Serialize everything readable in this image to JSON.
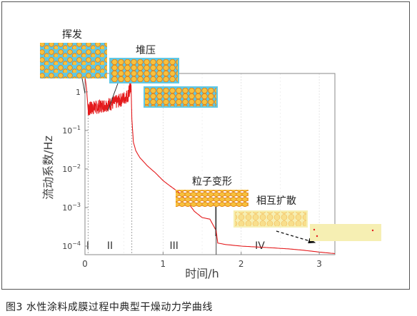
{
  "caption": "图3  水性涂料成膜过程中典型干燥动力学曲线",
  "colors": {
    "curve": "#e41a1c",
    "inset_bg_blue": "#5ec8e6",
    "inset_bg_yellow": "#f6efb3",
    "particle_fill": "#f7c13c",
    "particle_edge": "#e07a12",
    "axis": "#888888"
  },
  "chart_data": {
    "type": "line",
    "title": "",
    "xlabel": "时间/h",
    "ylabel": "流动系数/Hz",
    "xlim": [
      0,
      3.2
    ],
    "ylim": [
      6e-05,
      3
    ],
    "yscale": "log",
    "grid": true,
    "x_ticks": [
      "0",
      "1",
      "2",
      "3"
    ],
    "y_ticks": [
      "1",
      "10^-1",
      "10^-2",
      "10^-3",
      "10^-4"
    ],
    "y_tick_values": [
      1,
      0.1,
      0.01,
      0.001,
      0.0001
    ],
    "stages": [
      "I",
      "II",
      "III",
      "IV"
    ],
    "stage_boundaries": [
      0.04,
      0.6,
      1.68
    ],
    "annotations": [
      {
        "label": "挥发",
        "stage": "I"
      },
      {
        "label": "堆压",
        "stage": "II"
      },
      {
        "label": "粒子变形",
        "stage": "III"
      },
      {
        "label": "相互扩散",
        "stage": "IV"
      }
    ],
    "series": [
      {
        "x": [
          0.0,
          0.02,
          0.04,
          0.08,
          0.15,
          0.25,
          0.35,
          0.45,
          0.55,
          0.59,
          0.6,
          0.62,
          0.65,
          0.7,
          0.8,
          0.9,
          1.0,
          1.1,
          1.2,
          1.3,
          1.4,
          1.5,
          1.6,
          1.68,
          1.7,
          1.8,
          2.0,
          2.2,
          2.4,
          2.6,
          2.8,
          3.0,
          3.2
        ],
        "y": [
          2.5,
          1.2,
          0.35,
          0.38,
          0.4,
          0.45,
          0.5,
          0.6,
          0.8,
          1.5,
          0.2,
          0.05,
          0.03,
          0.02,
          0.012,
          0.008,
          0.005,
          0.0035,
          0.0025,
          0.0015,
          0.0008,
          0.00055,
          0.0005,
          0.00025,
          0.00012,
          0.00011,
          0.0001,
          9.5e-05,
          9e-05,
          8.5e-05,
          7.8e-05,
          7e-05,
          6.4e-05
        ]
      }
    ]
  }
}
